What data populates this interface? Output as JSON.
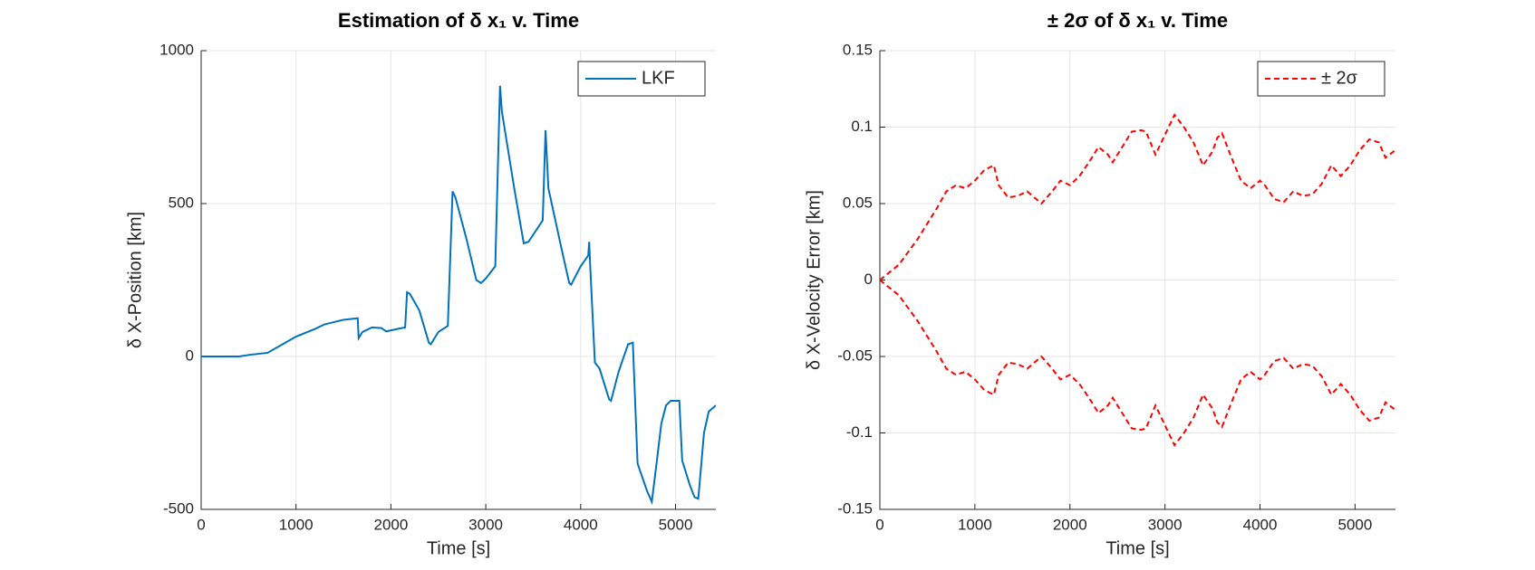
{
  "chart_data": [
    {
      "type": "line",
      "title": "Estimation of δ x₁ v. Time",
      "x_label": "Time [s]",
      "y_label": "δ X-Position [km]",
      "xlim": [
        0,
        5425
      ],
      "xticks": [
        0,
        1000,
        2000,
        3000,
        4000,
        5000
      ],
      "ylim": [
        -500,
        1000
      ],
      "yticks": [
        -500,
        0,
        500,
        1000
      ],
      "grid": true,
      "legend": "northeast",
      "x": [
        0,
        400,
        500,
        700,
        1000,
        1200,
        1300,
        1500,
        1650,
        1660,
        1700,
        1800,
        1900,
        1950,
        2100,
        2150,
        2170,
        2200,
        2300,
        2400,
        2420,
        2500,
        2600,
        2650,
        2680,
        2800,
        2900,
        2950,
        3000,
        3100,
        3150,
        3170,
        3300,
        3400,
        3450,
        3600,
        3630,
        3660,
        3800,
        3880,
        3900,
        4000,
        4080,
        4090,
        4100,
        4150,
        4200,
        4300,
        4320,
        4400,
        4500,
        4550,
        4600,
        4700,
        4750,
        4800,
        4850,
        4900,
        4950,
        5000,
        5040,
        5070,
        5150,
        5200,
        5240,
        5300,
        5350,
        5425
      ],
      "series": [
        {
          "name": "LKF",
          "color": "#0072bd",
          "line_style": "solid",
          "values": [
            0,
            0,
            5,
            12,
            65,
            90,
            105,
            120,
            125,
            60,
            80,
            95,
            93,
            82,
            92,
            95,
            210,
            205,
            150,
            45,
            40,
            80,
            100,
            540,
            520,
            380,
            250,
            240,
            255,
            295,
            885,
            800,
            550,
            370,
            375,
            445,
            740,
            550,
            350,
            240,
            235,
            295,
            330,
            375,
            300,
            -20,
            -40,
            -140,
            -145,
            -50,
            40,
            45,
            -350,
            -440,
            -475,
            -350,
            -220,
            -160,
            -145,
            -145,
            -145,
            -340,
            -420,
            -460,
            -465,
            -250,
            -180,
            -160
          ]
        }
      ]
    },
    {
      "type": "line",
      "title": "± 2σ of δ x₁ v. Time",
      "x_label": "Time [s]",
      "y_label": "δ X-Velocity Error [km]",
      "xlim": [
        0,
        5425
      ],
      "xticks": [
        0,
        1000,
        2000,
        3000,
        4000,
        5000
      ],
      "ylim": [
        -0.15,
        0.15
      ],
      "yticks": [
        -0.15,
        -0.1,
        -0.05,
        0,
        0.05,
        0.1,
        0.15
      ],
      "grid": true,
      "legend": "northeast",
      "x": [
        0,
        200,
        400,
        600,
        700,
        800,
        900,
        1000,
        1100,
        1200,
        1250,
        1350,
        1450,
        1550,
        1700,
        1800,
        1900,
        2000,
        2100,
        2200,
        2300,
        2400,
        2450,
        2550,
        2650,
        2750,
        2800,
        2900,
        3000,
        3100,
        3200,
        3300,
        3400,
        3500,
        3550,
        3600,
        3700,
        3800,
        3900,
        4000,
        4050,
        4150,
        4250,
        4350,
        4450,
        4550,
        4650,
        4750,
        4850,
        4950,
        5050,
        5150,
        5250,
        5320,
        5425
      ],
      "series": [
        {
          "name": "± 2σ",
          "color": "#ff0000",
          "line_style": "dashed",
          "values": [
            0,
            0.01,
            0.027,
            0.047,
            0.058,
            0.062,
            0.06,
            0.065,
            0.072,
            0.075,
            0.062,
            0.054,
            0.055,
            0.058,
            0.05,
            0.057,
            0.065,
            0.062,
            0.068,
            0.077,
            0.087,
            0.082,
            0.077,
            0.087,
            0.097,
            0.098,
            0.097,
            0.082,
            0.095,
            0.108,
            0.1,
            0.09,
            0.075,
            0.084,
            0.093,
            0.096,
            0.08,
            0.065,
            0.06,
            0.065,
            0.062,
            0.053,
            0.051,
            0.058,
            0.055,
            0.056,
            0.063,
            0.075,
            0.068,
            0.075,
            0.085,
            0.092,
            0.09,
            0.08,
            0.085
          ]
        },
        {
          "color": "#ff0000",
          "line_style": "dashed",
          "values": [
            0,
            -0.01,
            -0.027,
            -0.047,
            -0.058,
            -0.062,
            -0.06,
            -0.065,
            -0.072,
            -0.075,
            -0.062,
            -0.054,
            -0.055,
            -0.058,
            -0.05,
            -0.057,
            -0.065,
            -0.062,
            -0.068,
            -0.077,
            -0.087,
            -0.082,
            -0.077,
            -0.087,
            -0.097,
            -0.098,
            -0.097,
            -0.082,
            -0.095,
            -0.108,
            -0.1,
            -0.09,
            -0.075,
            -0.084,
            -0.093,
            -0.096,
            -0.08,
            -0.065,
            -0.06,
            -0.065,
            -0.062,
            -0.053,
            -0.051,
            -0.058,
            -0.055,
            -0.056,
            -0.063,
            -0.075,
            -0.068,
            -0.075,
            -0.085,
            -0.092,
            -0.09,
            -0.08,
            -0.085
          ]
        }
      ]
    }
  ]
}
